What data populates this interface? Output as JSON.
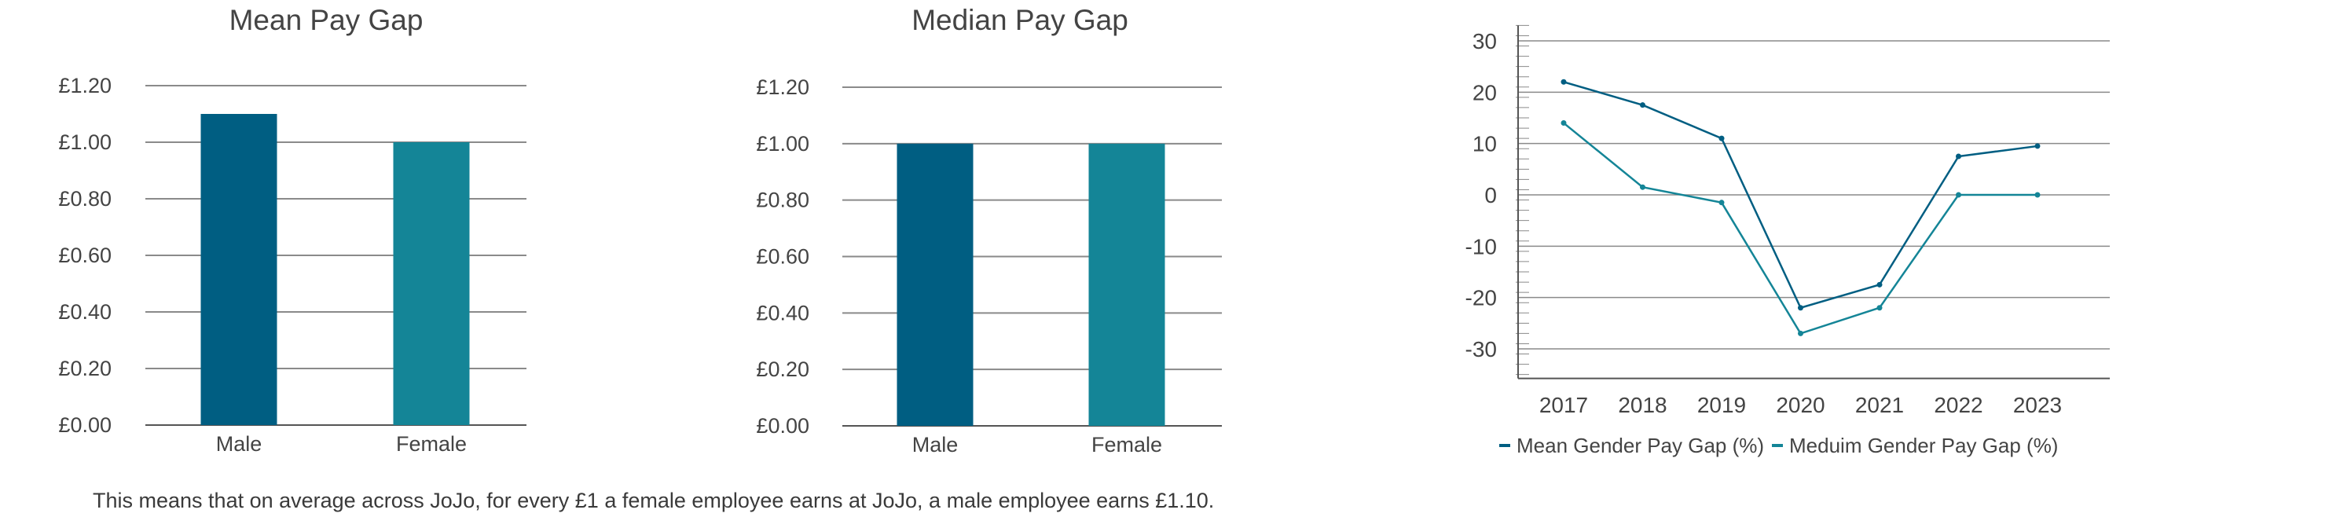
{
  "colors": {
    "male": "#005E82",
    "female": "#148597",
    "axis": "#555555",
    "grid": "#8a8a8a",
    "text": "#444444"
  },
  "note": "This means that on average across JoJo, for every £1 a female employee earns at JoJo, a male employee earns £1.10.",
  "chart_data": [
    {
      "type": "bar",
      "title": "Mean Pay Gap",
      "categories": [
        "Male",
        "Female"
      ],
      "values": [
        1.1,
        1.0
      ],
      "ylim": [
        0,
        1.2
      ],
      "yticks": [
        "£0.00",
        "£0.20",
        "£0.40",
        "£0.60",
        "£0.80",
        "£1.00",
        "£1.20"
      ],
      "grid": true
    },
    {
      "type": "bar",
      "title": "Median Pay Gap",
      "categories": [
        "Male",
        "Female"
      ],
      "values": [
        1.0,
        1.0
      ],
      "ylim": [
        0,
        1.2
      ],
      "yticks": [
        "£0.00",
        "£0.20",
        "£0.40",
        "£0.60",
        "£0.80",
        "£1.00",
        "£1.20"
      ],
      "grid": true
    },
    {
      "type": "line",
      "title": "",
      "x": [
        "2017",
        "2018",
        "2019",
        "2020",
        "2021",
        "2022",
        "2023"
      ],
      "ylim": [
        -35,
        33
      ],
      "yticks": [
        "30",
        "20",
        "10",
        "0",
        "-10",
        "-20",
        "-30"
      ],
      "grid": true,
      "legend_position": "bottom",
      "series": [
        {
          "name": "Mean Gender Pay Gap (%)",
          "values": [
            22.0,
            17.5,
            11.0,
            -22.0,
            -17.5,
            7.5,
            9.5
          ]
        },
        {
          "name": "Meduim Gender Pay Gap (%)",
          "values": [
            14.0,
            1.5,
            -1.5,
            -27.0,
            -22.0,
            0.0,
            0.0
          ]
        }
      ]
    }
  ]
}
